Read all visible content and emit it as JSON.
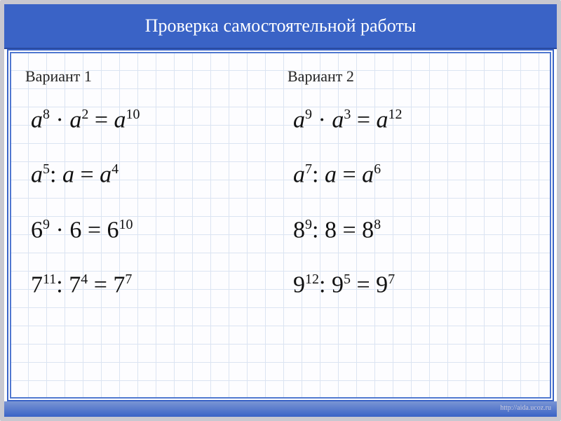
{
  "header": {
    "title": "Проверка самостоятельной работы"
  },
  "columns": [
    {
      "label": "Вариант 1",
      "equations": [
        {
          "parts": [
            {
              "t": "v",
              "v": "a"
            },
            {
              "t": "sup",
              "v": "8"
            },
            {
              "t": "op",
              "v": " · "
            },
            {
              "t": "v",
              "v": "a"
            },
            {
              "t": "sup",
              "v": "2"
            },
            {
              "t": "op",
              "v": " = "
            },
            {
              "t": "v",
              "v": "a"
            },
            {
              "t": "sup",
              "v": "10"
            }
          ]
        },
        {
          "parts": [
            {
              "t": "v",
              "v": "a"
            },
            {
              "t": "sup",
              "v": "5"
            },
            {
              "t": "op",
              "v": ": "
            },
            {
              "t": "v",
              "v": "a"
            },
            {
              "t": "op",
              "v": " = "
            },
            {
              "t": "v",
              "v": "a"
            },
            {
              "t": "sup",
              "v": "4"
            }
          ]
        },
        {
          "parts": [
            {
              "t": "n",
              "v": "6"
            },
            {
              "t": "sup",
              "v": "9"
            },
            {
              "t": "op",
              "v": " · "
            },
            {
              "t": "n",
              "v": "6"
            },
            {
              "t": "op",
              "v": " = "
            },
            {
              "t": "n",
              "v": "6"
            },
            {
              "t": "sup",
              "v": "10"
            }
          ]
        },
        {
          "parts": [
            {
              "t": "n",
              "v": "7"
            },
            {
              "t": "sup",
              "v": "11"
            },
            {
              "t": "op",
              "v": ": "
            },
            {
              "t": "n",
              "v": "7"
            },
            {
              "t": "sup",
              "v": "4"
            },
            {
              "t": "op",
              "v": " = "
            },
            {
              "t": "n",
              "v": "7"
            },
            {
              "t": "sup",
              "v": "7"
            }
          ]
        }
      ]
    },
    {
      "label": "Вариант 2",
      "equations": [
        {
          "parts": [
            {
              "t": "v",
              "v": "a"
            },
            {
              "t": "sup",
              "v": "9"
            },
            {
              "t": "op",
              "v": " · "
            },
            {
              "t": "v",
              "v": "a"
            },
            {
              "t": "sup",
              "v": "3"
            },
            {
              "t": "op",
              "v": " = "
            },
            {
              "t": "v",
              "v": "a"
            },
            {
              "t": "sup",
              "v": "12"
            }
          ]
        },
        {
          "parts": [
            {
              "t": "v",
              "v": "a"
            },
            {
              "t": "sup",
              "v": "7"
            },
            {
              "t": "op",
              "v": ": "
            },
            {
              "t": "v",
              "v": "a"
            },
            {
              "t": "op",
              "v": " = "
            },
            {
              "t": "v",
              "v": "a"
            },
            {
              "t": "sup",
              "v": "6"
            }
          ]
        },
        {
          "parts": [
            {
              "t": "n",
              "v": "8"
            },
            {
              "t": "sup",
              "v": "9"
            },
            {
              "t": "op",
              "v": ": "
            },
            {
              "t": "n",
              "v": "8"
            },
            {
              "t": "op",
              "v": " = "
            },
            {
              "t": "n",
              "v": "8"
            },
            {
              "t": "sup",
              "v": "8"
            }
          ]
        },
        {
          "parts": [
            {
              "t": "n",
              "v": "9"
            },
            {
              "t": "sup",
              "v": "12"
            },
            {
              "t": "op",
              "v": ": "
            },
            {
              "t": "n",
              "v": "9"
            },
            {
              "t": "sup",
              "v": "5"
            },
            {
              "t": "op",
              "v": " = "
            },
            {
              "t": "n",
              "v": "9"
            },
            {
              "t": "sup",
              "v": "7"
            }
          ]
        }
      ]
    }
  ],
  "footer": {
    "url": "http://aida.ucoz.ru"
  },
  "style": {
    "header_bg": "#3a63c6",
    "frame_border": "#c8c8d0",
    "grid_color": "#dbe4f2",
    "text_color": "#111",
    "title_fontsize": 26,
    "label_fontsize": 22,
    "equation_fontsize": 34,
    "sup_fontsize": 20
  }
}
